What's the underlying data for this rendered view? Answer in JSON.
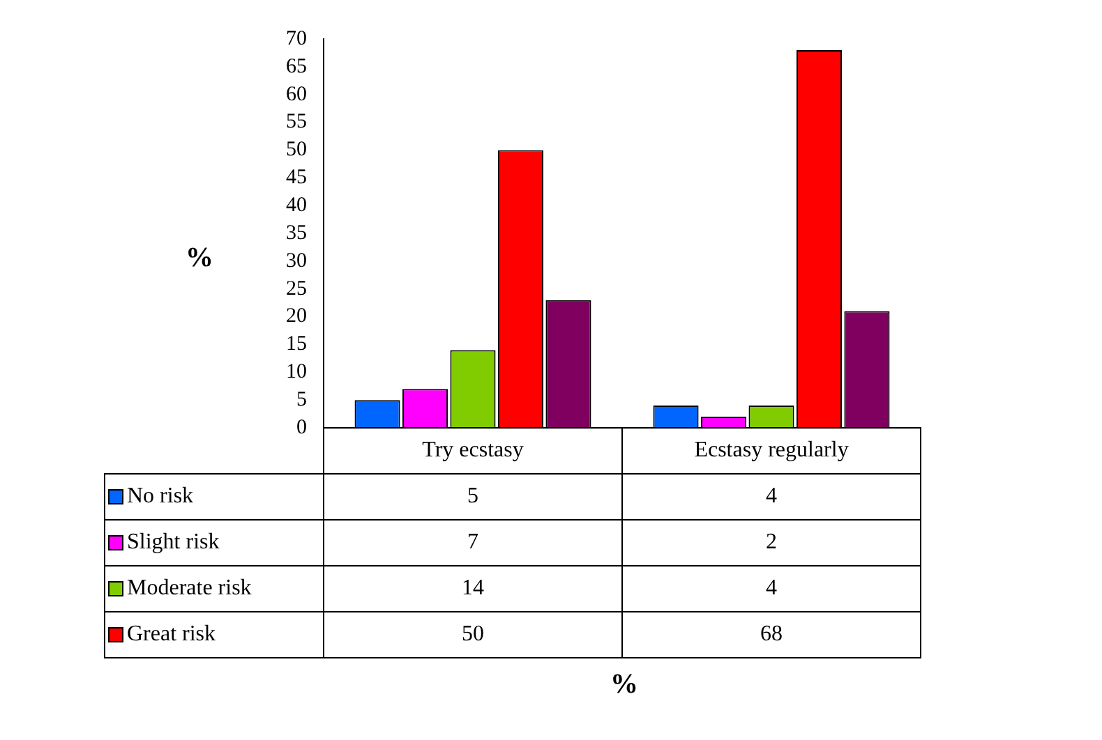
{
  "chart_data": {
    "type": "bar",
    "ylabel": "%",
    "annotations": [
      "%"
    ],
    "categories": [
      "Try ecstasy",
      "Ecstasy regularly"
    ],
    "series": [
      {
        "name": "No risk",
        "color": "#0066ff",
        "values": [
          5,
          4
        ],
        "value_labels": [
          "5",
          "4"
        ]
      },
      {
        "name": "Slight risk",
        "color": "#ff00ff",
        "values": [
          7,
          2
        ],
        "value_labels": [
          "7",
          "2"
        ]
      },
      {
        "name": "Moderate risk",
        "color": "#80cc00",
        "values": [
          14,
          4
        ],
        "value_labels": [
          "14",
          "4"
        ]
      },
      {
        "name": "Great risk",
        "color": "#ff0000",
        "values": [
          50,
          68
        ],
        "value_labels": [
          "50",
          "68"
        ]
      },
      {
        "color": "#800060",
        "values": [
          23,
          21
        ]
      }
    ],
    "ylim": [
      0,
      70
    ],
    "yticks": [
      0,
      5,
      10,
      15,
      20,
      25,
      30,
      35,
      40,
      45,
      50,
      55,
      60,
      65,
      70
    ],
    "grid": false,
    "legend": "bottom"
  }
}
